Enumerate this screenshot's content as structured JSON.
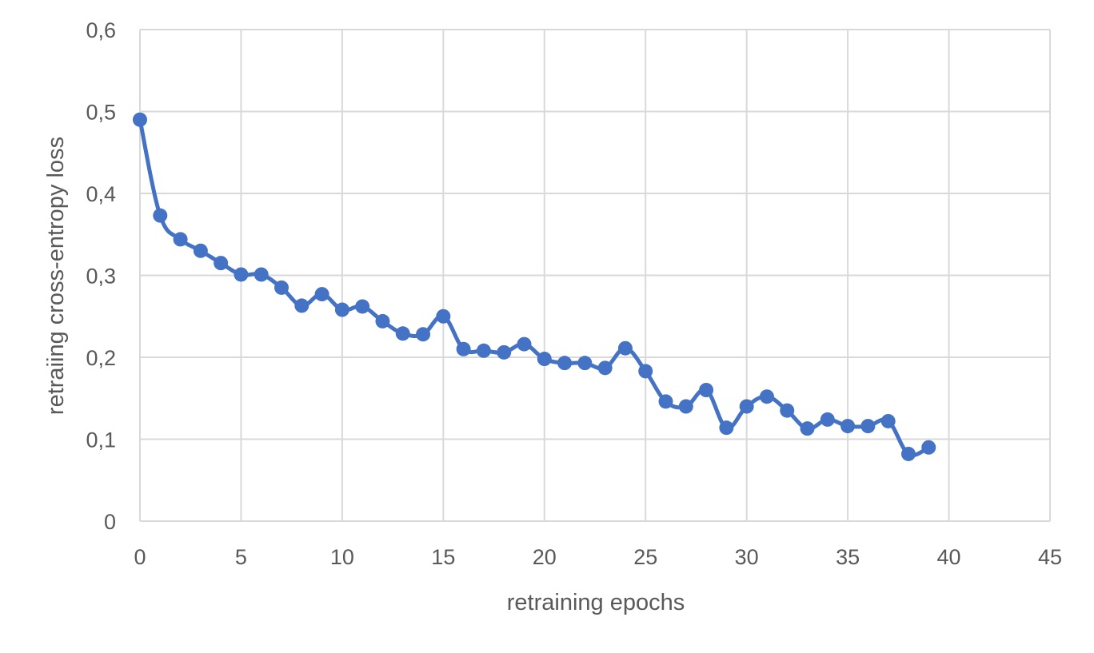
{
  "chart_data": {
    "type": "line",
    "title": "",
    "xlabel": "retraining epochs",
    "ylabel": "retraiing cross-entropy loss",
    "xlim": [
      0,
      45
    ],
    "ylim": [
      0,
      0.6
    ],
    "xticks": [
      0,
      5,
      10,
      15,
      20,
      25,
      30,
      35,
      40,
      45
    ],
    "yticks": [
      0,
      0.1,
      0.2,
      0.3,
      0.4,
      0.5,
      0.6
    ],
    "xtick_labels": [
      "0",
      "5",
      "10",
      "15",
      "20",
      "25",
      "30",
      "35",
      "40",
      "45"
    ],
    "ytick_labels": [
      "0",
      "0,1",
      "0,2",
      "0,3",
      "0,4",
      "0,5",
      "0,6"
    ],
    "grid": true,
    "legend": "none",
    "color": "#4472c4",
    "series": [
      {
        "x": [
          0,
          1,
          2,
          3,
          4,
          5,
          6,
          7,
          8,
          9,
          10,
          11,
          12,
          13,
          14,
          15,
          16,
          17,
          18,
          19,
          20,
          21,
          22,
          23,
          24,
          25,
          26,
          27,
          28,
          29,
          30,
          31,
          32,
          33,
          34,
          35,
          36,
          37,
          38,
          39
        ],
        "values": [
          0.49,
          0.373,
          0.344,
          0.33,
          0.315,
          0.301,
          0.301,
          0.285,
          0.263,
          0.277,
          0.258,
          0.262,
          0.244,
          0.229,
          0.228,
          0.25,
          0.21,
          0.208,
          0.206,
          0.216,
          0.198,
          0.193,
          0.193,
          0.187,
          0.211,
          0.183,
          0.146,
          0.14,
          0.16,
          0.114,
          0.14,
          0.152,
          0.135,
          0.113,
          0.124,
          0.116,
          0.116,
          0.122,
          0.082,
          0.09
        ]
      }
    ]
  }
}
